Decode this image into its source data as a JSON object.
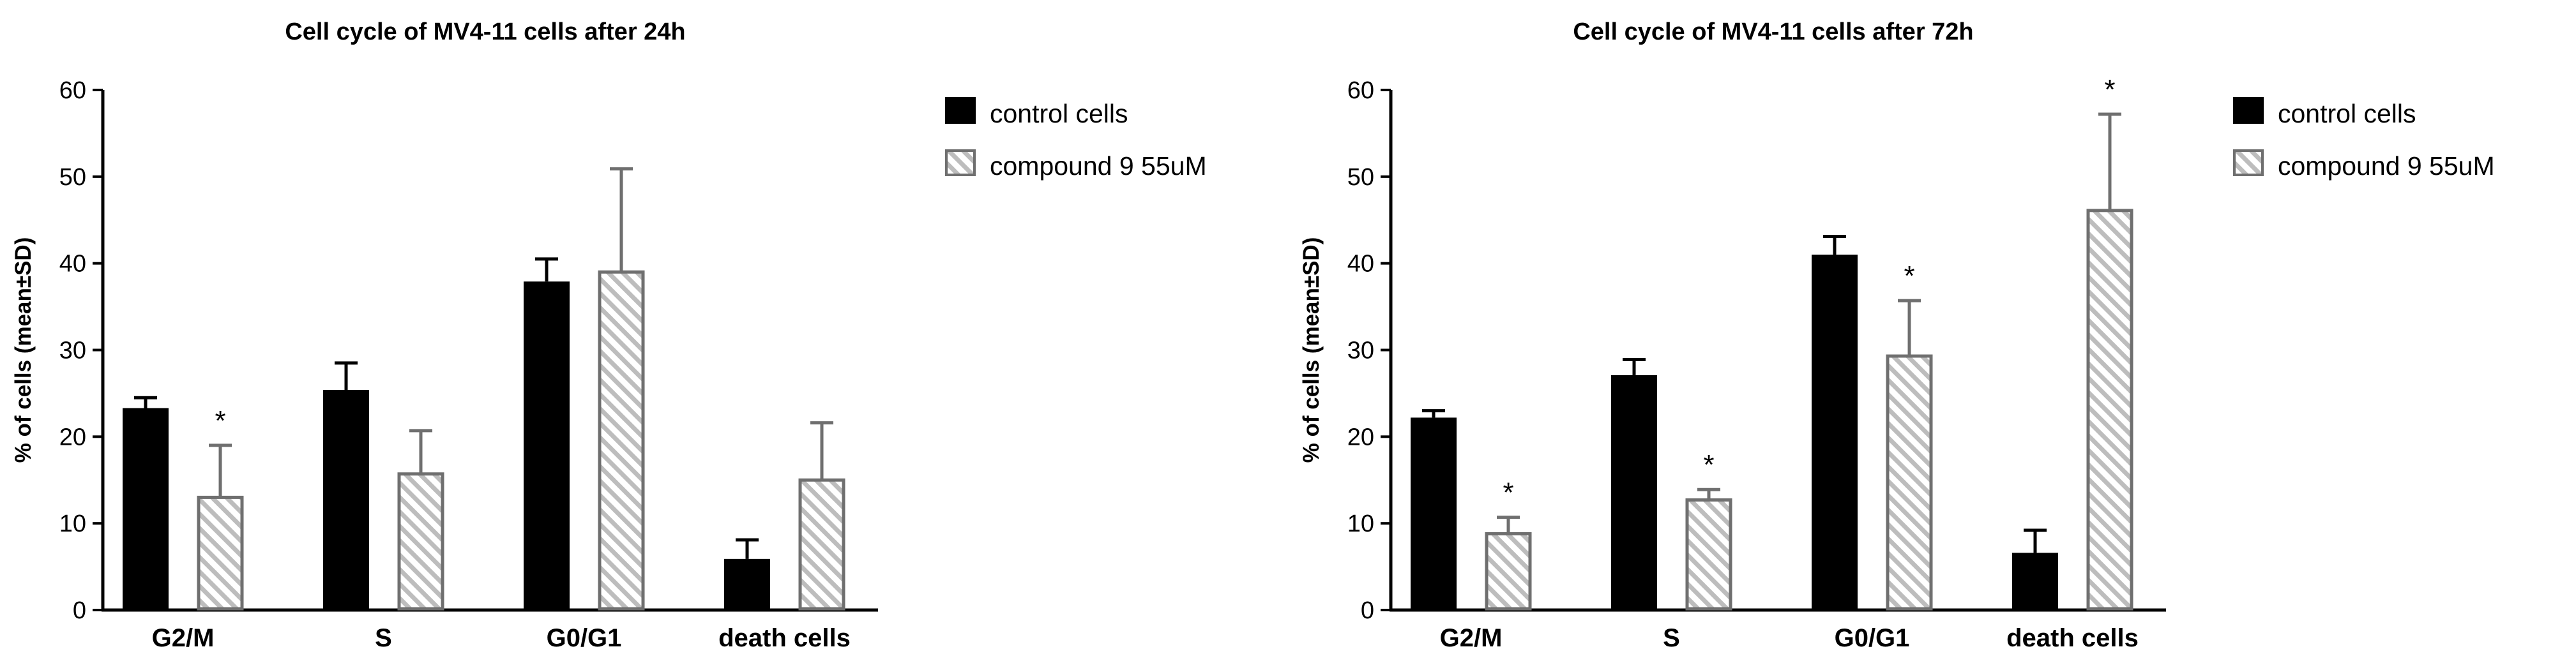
{
  "colors": {
    "control": "#000000",
    "compound_stroke": "#6f6f6f",
    "compound_hatch": "#bdbdbd",
    "error_bar": "#6f6f6f"
  },
  "chart_data": [
    {
      "type": "bar",
      "title": "Cell cycle of MV4-11 cells after 24h",
      "xlabel": "",
      "ylabel": "% of cells (mean±SD)",
      "ylim": [
        0,
        60
      ],
      "yticks": [
        "0",
        "10",
        "20",
        "30",
        "40",
        "50",
        "60"
      ],
      "categories": [
        "G2/M",
        "S",
        "G0/G1",
        "death cells"
      ],
      "series": [
        {
          "name": "control cells",
          "style": "solid",
          "values": [
            23.3,
            25.4,
            37.9,
            5.9
          ],
          "errors": [
            1.2,
            3.1,
            2.6,
            2.2
          ],
          "significant": [
            false,
            false,
            false,
            false
          ]
        },
        {
          "name": "compound 9 55uM",
          "style": "hatched",
          "values": [
            13.0,
            15.7,
            39.0,
            15.0
          ],
          "errors": [
            6.0,
            5.0,
            11.9,
            6.6
          ],
          "significant": [
            true,
            false,
            false,
            false
          ]
        }
      ],
      "significance_mark": "*",
      "legend_position": "right",
      "grid": false
    },
    {
      "type": "bar",
      "title": "Cell cycle of MV4-11 cells after 72h",
      "xlabel": "",
      "ylabel": "% of cells (mean±SD)",
      "ylim": [
        0,
        60
      ],
      "yticks": [
        "0",
        "10",
        "20",
        "30",
        "40",
        "50",
        "60"
      ],
      "categories": [
        "G2/M",
        "S",
        "G0/G1",
        "death cells"
      ],
      "series": [
        {
          "name": "control cells",
          "style": "solid",
          "values": [
            22.2,
            27.1,
            41.0,
            6.6
          ],
          "errors": [
            0.8,
            1.8,
            2.1,
            2.6
          ],
          "significant": [
            false,
            false,
            false,
            false
          ]
        },
        {
          "name": "compound 9 55uM",
          "style": "hatched",
          "values": [
            8.8,
            12.7,
            29.3,
            46.1
          ],
          "errors": [
            1.9,
            1.2,
            6.4,
            11.1
          ],
          "significant": [
            true,
            true,
            true,
            true
          ]
        }
      ],
      "significance_mark": "*",
      "legend_position": "right",
      "grid": false
    }
  ]
}
